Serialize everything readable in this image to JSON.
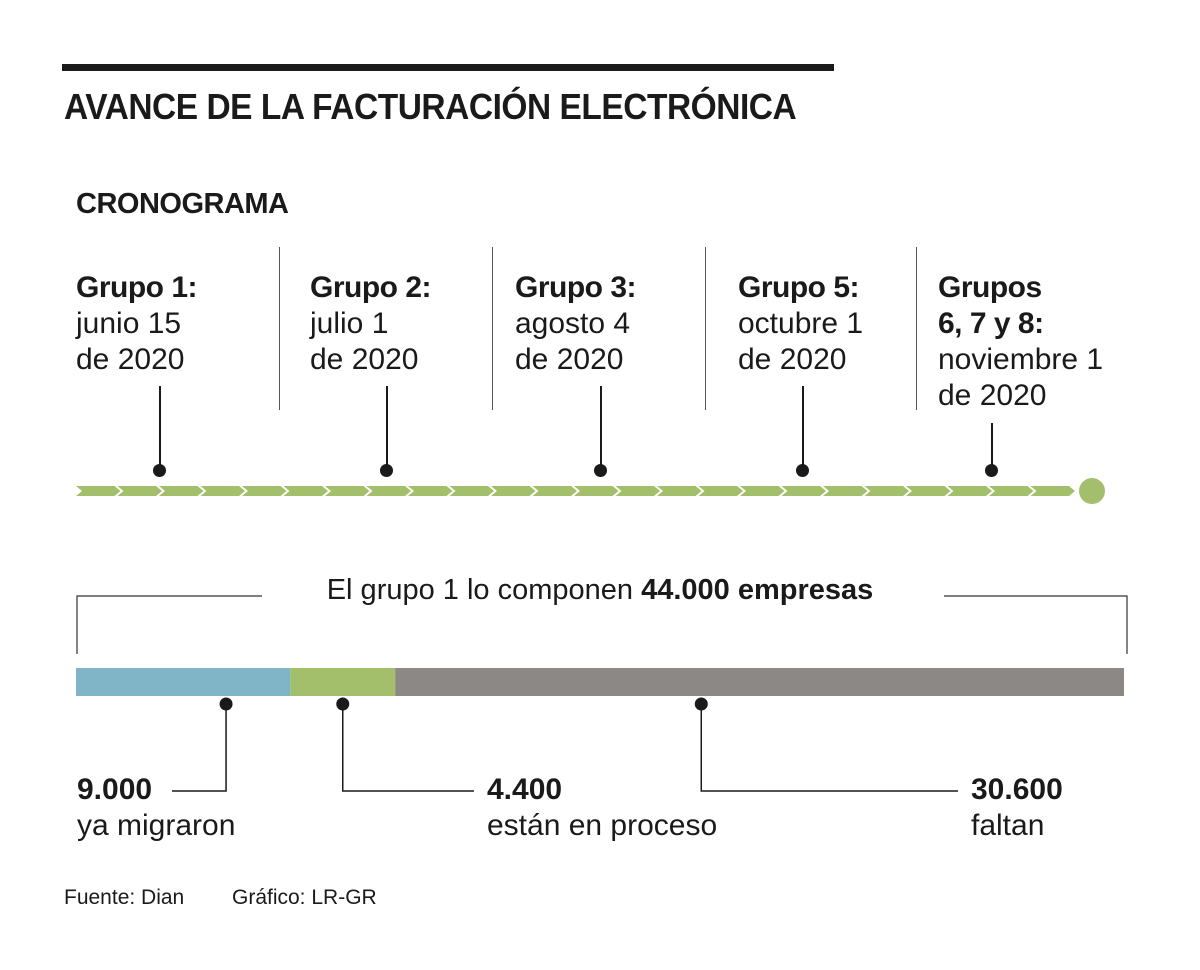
{
  "header": {
    "title": "AVANCE DE LA FACTURACIÓN ELECTRÓNICA",
    "subtitle": "CRONOGRAMA"
  },
  "timeline": {
    "groups": [
      {
        "name": "Grupo 1:",
        "date_lines": [
          "junio 15",
          "de 2020"
        ]
      },
      {
        "name": "Grupo 2:",
        "date_lines": [
          "julio 1",
          "de 2020"
        ]
      },
      {
        "name": "Grupo 3:",
        "date_lines": [
          "agosto 4",
          "de 2020"
        ]
      },
      {
        "name": "Grupo 5:",
        "date_lines": [
          "octubre 1",
          "de 2020"
        ]
      },
      {
        "name": "Grupos",
        "name2": "6, 7 y 8:",
        "date_lines": [
          "noviembre 1",
          "de 2020"
        ]
      }
    ],
    "colors": {
      "arrow": "#a3bf6b",
      "end_dot": "#a3bf6b"
    }
  },
  "group1": {
    "summary_prefix": "El grupo 1 lo componen",
    "summary_highlight": "44.000 empresas",
    "total": 44000,
    "segments": [
      {
        "value": 9000,
        "value_label": "9.000",
        "label": "ya migraron",
        "color": "#7fb5c6"
      },
      {
        "value": 4400,
        "value_label": "4.400",
        "label": "están en proceso",
        "color": "#a3bf6b"
      },
      {
        "value": 30600,
        "value_label": "30.600",
        "label": "faltan",
        "color": "#8c8886"
      }
    ]
  },
  "footer": {
    "source": "Fuente: Dian",
    "credit": "Gráfico: LR-GR"
  }
}
